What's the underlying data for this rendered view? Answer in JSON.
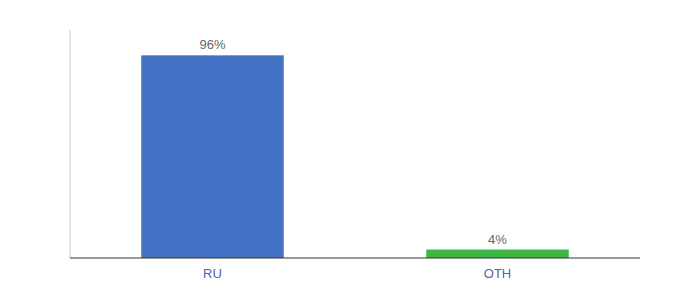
{
  "chart_data": {
    "type": "bar",
    "categories": [
      "RU",
      "OTH"
    ],
    "values": [
      96,
      4
    ],
    "value_labels": [
      "96%",
      "4%"
    ],
    "colors": [
      "#4472c4",
      "#3cb843"
    ],
    "ylim": [
      0,
      108
    ],
    "tick_labels": "x",
    "data_labels": true,
    "grid": false
  }
}
